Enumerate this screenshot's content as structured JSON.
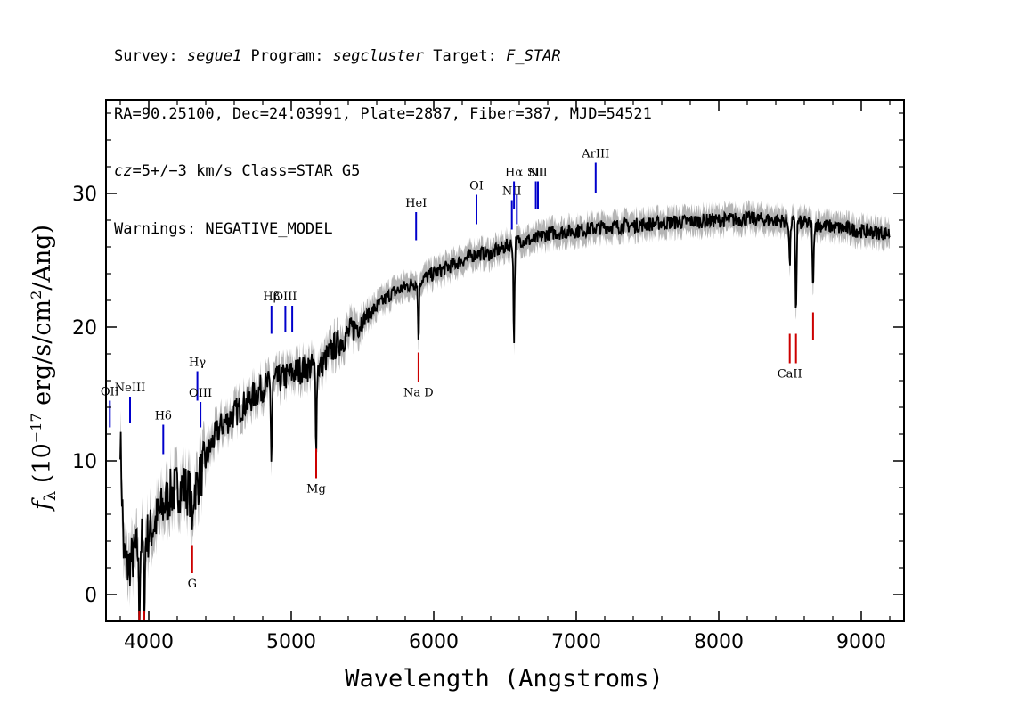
{
  "header": {
    "survey_label": "Survey: ",
    "survey": "segue1",
    "program_label": " Program: ",
    "program": "segcluster",
    "target_label": " Target: ",
    "target": "F_STAR",
    "line2": "RA=90.25100, Dec=24.03991, Plate=2887, Fiber=387, MJD=54521",
    "cz_label": "cz",
    "cz_value": "=5+/−3",
    "cz_rest": " km/s Class=STAR G5",
    "line4": "Warnings: NEGATIVE_MODEL"
  },
  "chart_data": {
    "type": "line",
    "xlabel": "Wavelength (Angstroms)",
    "ylabel": "f_λ (10^-17 erg/s/cm^2/Ang)",
    "xlim": [
      3700,
      9300
    ],
    "ylim": [
      -2,
      37
    ],
    "xticks": [
      4000,
      5000,
      6000,
      7000,
      8000,
      9000
    ],
    "yticks": [
      0,
      10,
      20,
      30
    ],
    "colors": {
      "flux": "#000000",
      "error": "#b4b4b4",
      "emission": "#0000cc",
      "absorption": "#cc0000"
    },
    "series": [
      {
        "x": [
          3800,
          3825,
          3850,
          3900,
          3950,
          4000,
          4050,
          4100,
          4150,
          4200,
          4250,
          4300,
          4350,
          4400,
          4450,
          4500,
          4600,
          4700,
          4800,
          4900,
          5000,
          5100,
          5200,
          5300,
          5400,
          5500,
          5600,
          5700,
          5800,
          5900,
          6000,
          6100,
          6200,
          6300,
          6400,
          6500,
          6600,
          6700,
          6800,
          7000,
          7200,
          7400,
          7600,
          7800,
          8000,
          8200,
          8400,
          8600,
          8800,
          9000,
          9200
        ],
        "y": [
          12.0,
          3.0,
          2.0,
          3.0,
          4.0,
          4.5,
          5.5,
          6.5,
          7.5,
          8.0,
          8.0,
          7.5,
          8.5,
          10.0,
          11.5,
          12.5,
          13.5,
          14.5,
          15.5,
          16.0,
          16.5,
          17.0,
          17.0,
          18.5,
          19.5,
          20.5,
          21.5,
          22.5,
          23.0,
          23.5,
          24.0,
          24.5,
          25.0,
          25.5,
          25.5,
          26.0,
          26.5,
          26.5,
          27.0,
          27.2,
          27.5,
          27.6,
          27.8,
          27.9,
          28.0,
          28.1,
          28.0,
          27.8,
          27.5,
          27.2,
          27.0
        ]
      }
    ],
    "absorption_dips": [
      {
        "x": 3934,
        "y": -2.0
      },
      {
        "x": 3968,
        "y": -2.0
      },
      {
        "x": 4305,
        "y": 4.5
      },
      {
        "x": 4861,
        "y": 10.0
      },
      {
        "x": 5175,
        "y": 11.5
      },
      {
        "x": 5893,
        "y": 19.0
      },
      {
        "x": 6563,
        "y": 19.0
      },
      {
        "x": 8498,
        "y": 24.5
      },
      {
        "x": 8542,
        "y": 21.0
      },
      {
        "x": 8662,
        "y": 22.5
      }
    ],
    "emission_lines": [
      {
        "label": "OII",
        "labels_shown": "OII",
        "x": 3727,
        "y0": 12.5,
        "y1": 14.5
      },
      {
        "label": "NeIII",
        "x": 3869,
        "y0": 12.8,
        "y1": 14.8
      },
      {
        "label": "Hδ",
        "x": 4102,
        "y0": 10.5,
        "y1": 12.7
      },
      {
        "label": "Hγ",
        "x": 4341,
        "y0": 14.5,
        "y1": 16.7
      },
      {
        "label": "OIII",
        "x": 4363,
        "y0": 12.5,
        "y1": 14.4
      },
      {
        "label": "Hβ",
        "x": 4861,
        "y0": 19.5,
        "y1": 21.6
      },
      {
        "label": "OIII",
        "x": 4959,
        "y0": 19.6,
        "y1": 21.6
      },
      {
        "label": "",
        "x": 5007,
        "y0": 19.6,
        "y1": 21.6
      },
      {
        "label": "HeI",
        "x": 5876,
        "y0": 26.5,
        "y1": 28.6
      },
      {
        "label": "OI",
        "x": 6300,
        "y0": 27.7,
        "y1": 29.9
      },
      {
        "label": "NII",
        "x": 6548,
        "y0": 27.3,
        "y1": 29.5
      },
      {
        "label": "Hα",
        "x": 6563,
        "y0": 28.8,
        "y1": 30.9
      },
      {
        "label": "",
        "x": 6583,
        "y0": 27.7,
        "y1": 29.9
      },
      {
        "label": "SII",
        "x": 6716,
        "y0": 28.8,
        "y1": 30.9
      },
      {
        "label": "NII",
        "x": 6731,
        "y0": 28.8,
        "y1": 30.9
      },
      {
        "label": "ArIII",
        "x": 7136,
        "y0": 30.0,
        "y1": 32.3
      }
    ],
    "absorption_lines": [
      {
        "label": "",
        "x": 3934,
        "y0": -1.2,
        "y1": -2.0
      },
      {
        "label": "",
        "x": 3968,
        "y0": -1.2,
        "y1": -2.0
      },
      {
        "label": "G",
        "x": 4305,
        "y0": 1.6,
        "y1": 3.7
      },
      {
        "label": "Mg",
        "x": 5175,
        "y0": 8.7,
        "y1": 10.9
      },
      {
        "label": "Na D",
        "x": 5893,
        "y0": 15.9,
        "y1": 18.1
      },
      {
        "label": "CaII",
        "x": 8498,
        "y0": 17.3,
        "y1": 19.5
      },
      {
        "label": "",
        "x": 8542,
        "y0": 17.3,
        "y1": 19.5
      },
      {
        "label": "",
        "x": 8662,
        "y0": 19.0,
        "y1": 21.1
      }
    ]
  }
}
